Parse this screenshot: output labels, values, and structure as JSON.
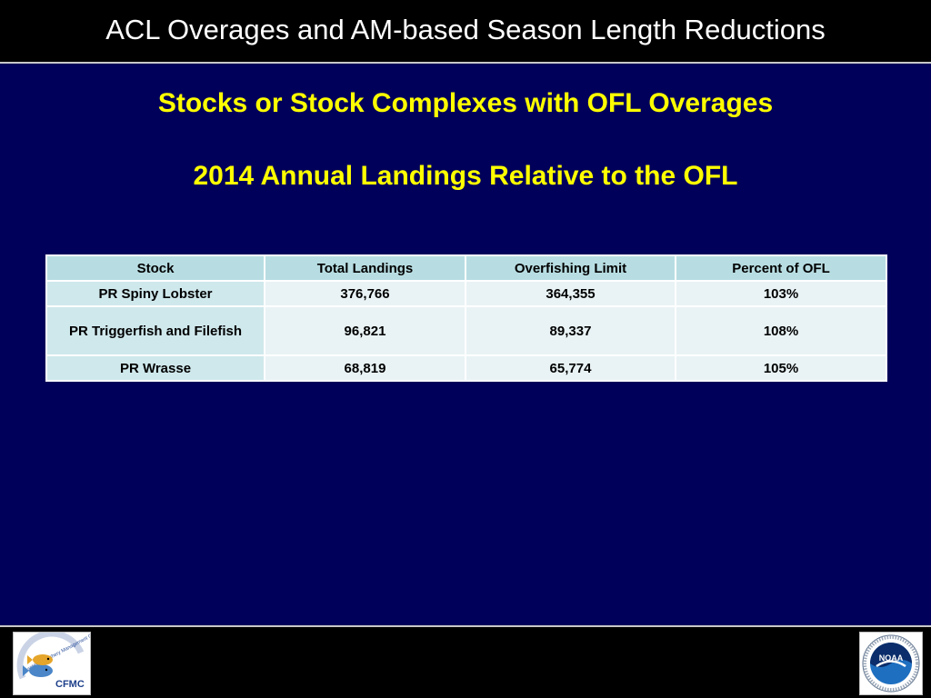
{
  "header": {
    "title": "ACL Overages and AM-based Season Length Reductions"
  },
  "main": {
    "heading": "Stocks or Stock Complexes with OFL Overages",
    "subheading": "2014 Annual Landings Relative to the OFL"
  },
  "table": {
    "columns": [
      "Stock",
      "Total Landings",
      "Overfishing Limit",
      "Percent of OFL"
    ],
    "rows": [
      {
        "stock": "PR Spiny Lobster",
        "total_landings": "376,766",
        "overfishing_limit": "364,355",
        "percent_of_ofl": "103%"
      },
      {
        "stock": "PR Triggerfish and Filefish",
        "total_landings": "96,821",
        "overfishing_limit": "89,337",
        "percent_of_ofl": "108%"
      },
      {
        "stock": "PR Wrasse",
        "total_landings": "68,819",
        "overfishing_limit": "65,774",
        "percent_of_ofl": "105%"
      }
    ]
  },
  "footer": {
    "left_logo": {
      "icon": "cfmc-logo",
      "text": "CFMC",
      "arc_text": "Caribbean Fishery Management Council"
    },
    "right_logo": {
      "icon": "noaa-logo",
      "text": "NOAA"
    }
  },
  "colors": {
    "background": "#00005a",
    "bar": "#000000",
    "heading": "#ffff00",
    "header_cell": "#b7dde2",
    "stock_cell": "#cfe8ec",
    "value_cell": "#e9f3f5"
  }
}
